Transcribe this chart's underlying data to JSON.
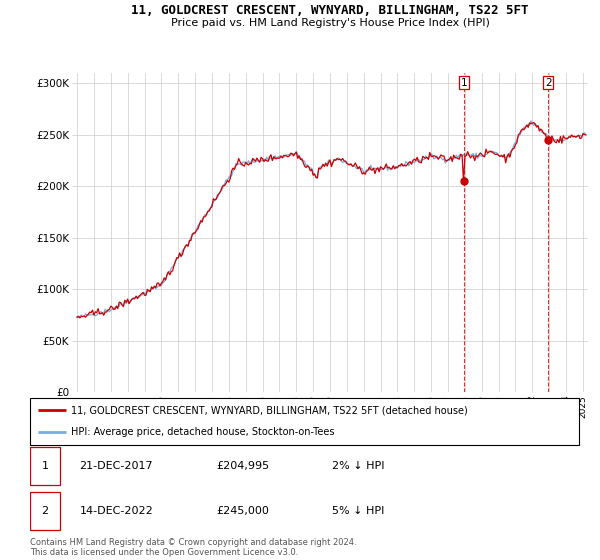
{
  "title": "11, GOLDCREST CRESCENT, WYNYARD, BILLINGHAM, TS22 5FT",
  "subtitle": "Price paid vs. HM Land Registry's House Price Index (HPI)",
  "legend_line1": "11, GOLDCREST CRESCENT, WYNYARD, BILLINGHAM, TS22 5FT (detached house)",
  "legend_line2": "HPI: Average price, detached house, Stockton-on-Tees",
  "transaction1_date": "21-DEC-2017",
  "transaction1_price": "£204,995",
  "transaction1_hpi": "2% ↓ HPI",
  "transaction2_date": "14-DEC-2022",
  "transaction2_price": "£245,000",
  "transaction2_hpi": "5% ↓ HPI",
  "footer": "Contains HM Land Registry data © Crown copyright and database right 2024.\nThis data is licensed under the Open Government Licence v3.0.",
  "price_color": "#cc0000",
  "hpi_color": "#7aacdc",
  "marker1_date": 2017.95,
  "marker1_price": 204995,
  "marker2_date": 2022.95,
  "marker2_price": 245000,
  "ylim": [
    0,
    310000
  ],
  "yticks": [
    0,
    50000,
    100000,
    150000,
    200000,
    250000,
    300000
  ],
  "ytick_labels": [
    "£0",
    "£50K",
    "£100K",
    "£150K",
    "£200K",
    "£250K",
    "£300K"
  ],
  "xlim_start": 1994.7,
  "xlim_end": 2025.3
}
